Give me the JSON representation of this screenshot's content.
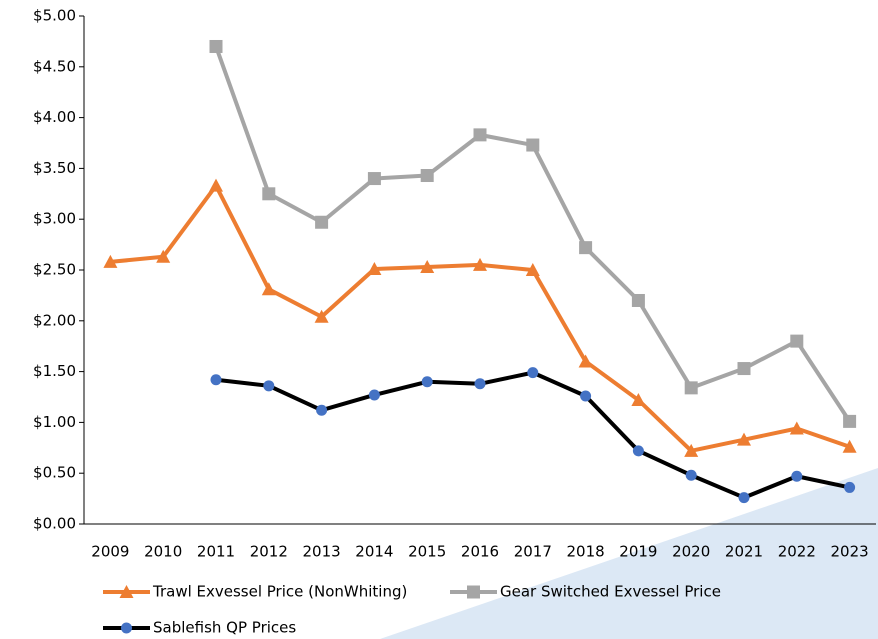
{
  "chart_data": {
    "type": "line",
    "categories": [
      "2009",
      "2010",
      "2011",
      "2012",
      "2013",
      "2014",
      "2015",
      "2016",
      "2017",
      "2018",
      "2019",
      "2020",
      "2021",
      "2022",
      "2023"
    ],
    "series": [
      {
        "name": "Trawl Exvessel Price (NonWhiting)",
        "color": "#ed7d31",
        "marker": "triangle",
        "values": [
          2.58,
          2.63,
          3.33,
          2.31,
          2.04,
          2.51,
          2.53,
          2.55,
          2.5,
          1.6,
          1.22,
          0.72,
          0.83,
          0.94,
          0.76
        ]
      },
      {
        "name": "Gear Switched Exvessel Price",
        "color": "#a5a5a5",
        "marker": "square",
        "values": [
          null,
          null,
          4.7,
          3.25,
          2.97,
          3.4,
          3.43,
          3.83,
          3.73,
          2.72,
          2.2,
          1.34,
          1.53,
          1.8,
          1.01
        ]
      },
      {
        "name": "Sablefish QP Prices",
        "color": "#000000",
        "marker": "circle",
        "marker_color": "#4472c4",
        "values": [
          null,
          null,
          1.42,
          1.36,
          1.12,
          1.27,
          1.4,
          1.38,
          1.49,
          1.26,
          0.72,
          0.48,
          0.26,
          0.47,
          0.36
        ]
      }
    ],
    "ylim": [
      0,
      5
    ],
    "yticks": [
      {
        "value": 0,
        "label": "$0.00"
      },
      {
        "value": 0.5,
        "label": "$0.50"
      },
      {
        "value": 1,
        "label": "$1.00"
      },
      {
        "value": 1.5,
        "label": "$1.50"
      },
      {
        "value": 2,
        "label": "$2.00"
      },
      {
        "value": 2.5,
        "label": "$2.50"
      },
      {
        "value": 3,
        "label": "$3.00"
      },
      {
        "value": 3.5,
        "label": "$3.50"
      },
      {
        "value": 4,
        "label": "$4.00"
      },
      {
        "value": 4.5,
        "label": "$4.50"
      },
      {
        "value": 5,
        "label": "$5.00"
      }
    ],
    "legend": "bottom"
  }
}
